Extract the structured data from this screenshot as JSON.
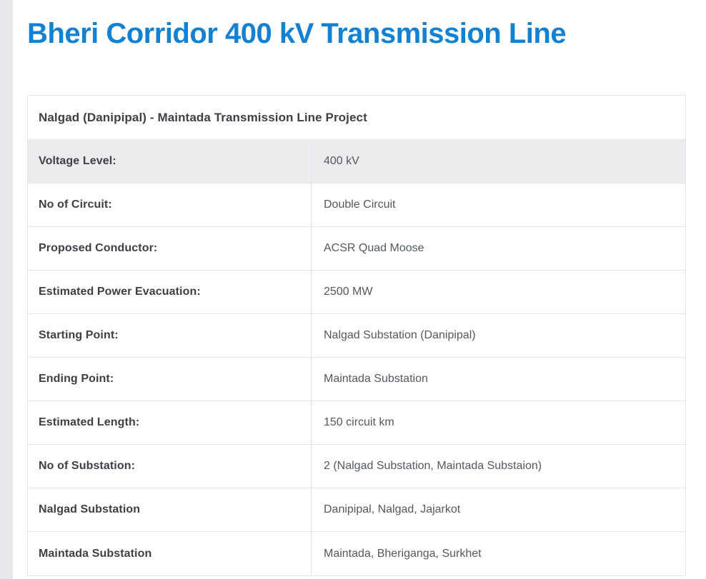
{
  "page": {
    "title": "Bheri Corridor 400 kV Transmission Line",
    "accent_color": "#1181d3",
    "gutter_color": "#e6e7ea",
    "border_color": "#e3e5ec",
    "shaded_row_color": "#ececee",
    "label_text_color": "#3e4046",
    "value_text_color": "#54595f"
  },
  "project_table": {
    "header": "Nalgad (Danipipal) - Maintada Transmission Line Project",
    "rows": [
      {
        "label": "Voltage Level:",
        "value": "400 kV",
        "shaded": true
      },
      {
        "label": "No of Circuit:",
        "value": "Double Circuit",
        "shaded": false
      },
      {
        "label": "Proposed Conductor:",
        "value": "ACSR Quad Moose",
        "shaded": false
      },
      {
        "label": "Estimated Power Evacuation:",
        "value": "2500 MW",
        "shaded": false
      },
      {
        "label": "Starting Point:",
        "value": "Nalgad Substation (Danipipal)",
        "shaded": false
      },
      {
        "label": "Ending Point:",
        "value": "Maintada Substation",
        "shaded": false
      },
      {
        "label": "Estimated Length:",
        "value": "150 circuit km",
        "shaded": false
      },
      {
        "label": "No of Substation:",
        "value": "2 (Nalgad Substation, Maintada Substaion)",
        "shaded": false
      },
      {
        "label": "Nalgad Substation",
        "value": "Danipipal, Nalgad, Jajarkot",
        "shaded": false
      },
      {
        "label": "Maintada Substation",
        "value": "Maintada, Bheriganga, Surkhet",
        "shaded": false
      }
    ]
  }
}
